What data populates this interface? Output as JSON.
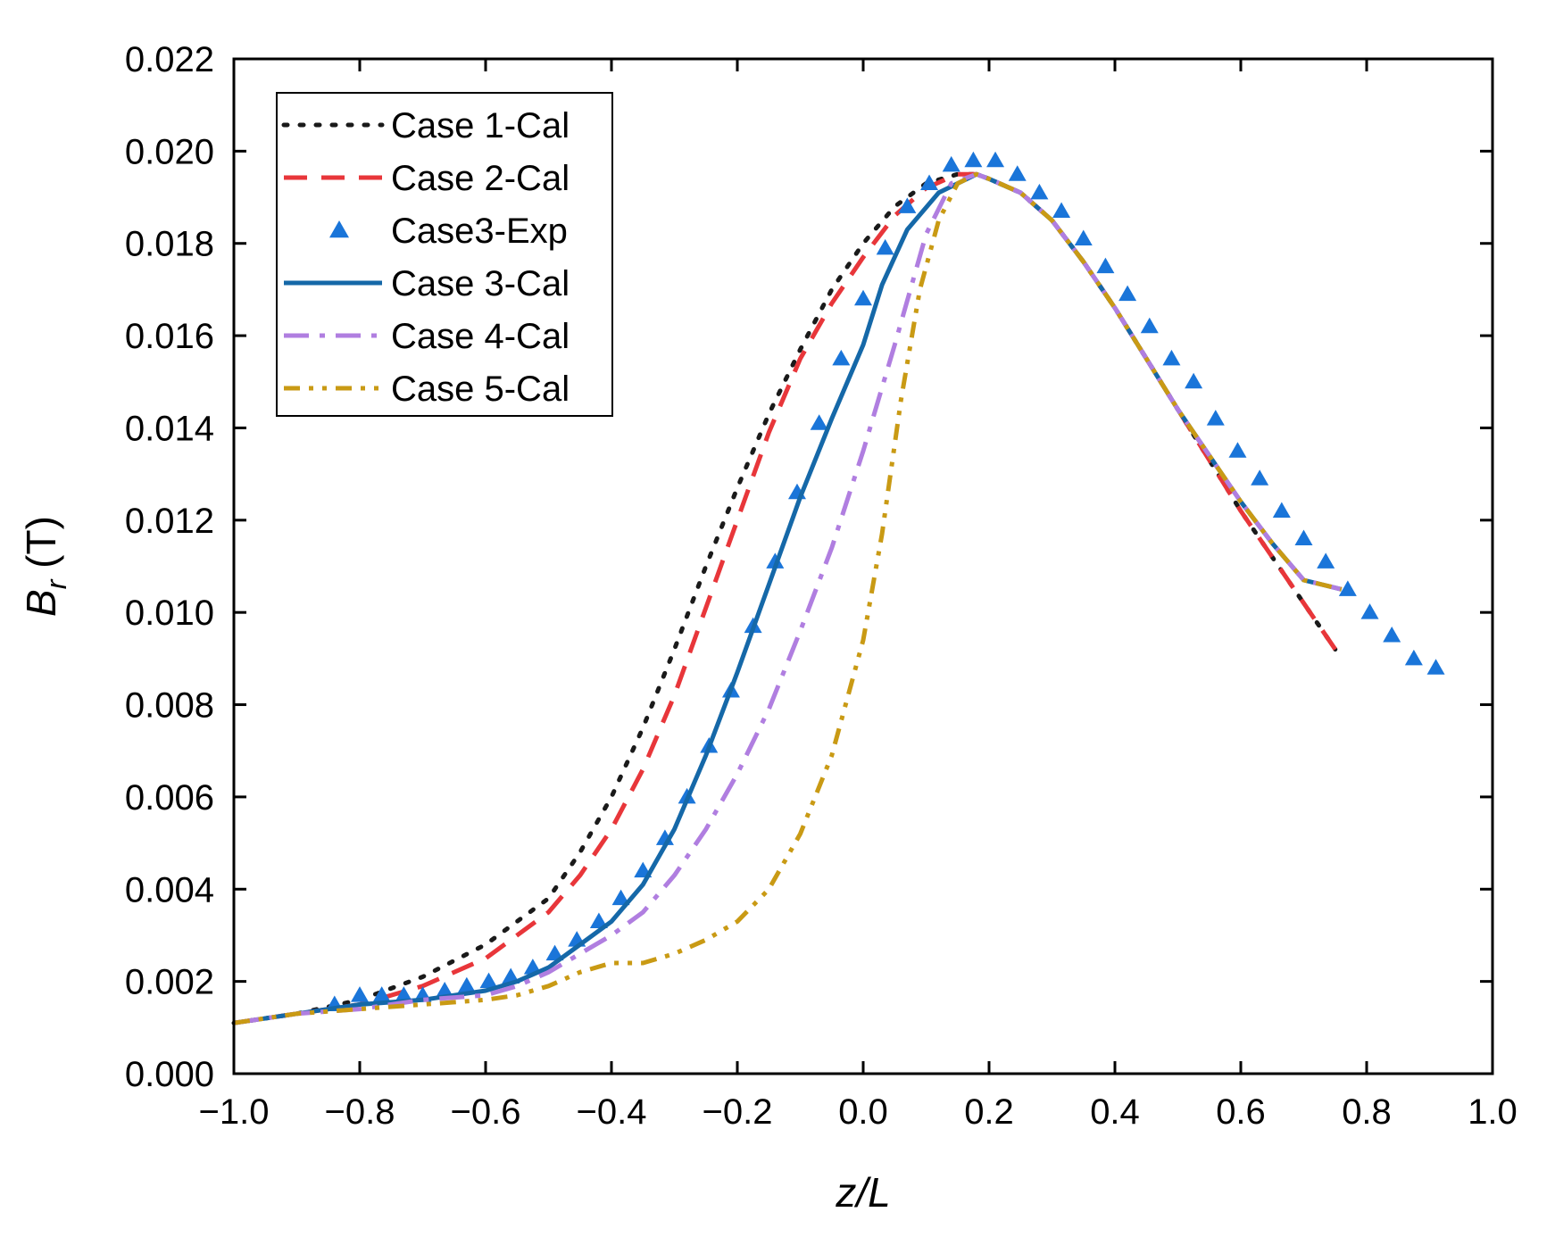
{
  "chart_data": {
    "type": "line",
    "title": "",
    "xlabel": "z/L",
    "ylabel_main": "B",
    "ylabel_sub": "r",
    "ylabel_unit": " (T)",
    "xlim": [
      -1.0,
      1.0
    ],
    "ylim": [
      0.0,
      0.022
    ],
    "xticks": [
      -1.0,
      -0.8,
      -0.6,
      -0.4,
      -0.2,
      0.0,
      0.2,
      0.4,
      0.6,
      0.8,
      1.0
    ],
    "xtick_labels": [
      "−1.0",
      "−0.8",
      "−0.6",
      "−0.4",
      "−0.2",
      "0.0",
      "0.2",
      "0.4",
      "0.6",
      "0.8",
      "1.0"
    ],
    "yticks": [
      0.0,
      0.002,
      0.004,
      0.006,
      0.008,
      0.01,
      0.012,
      0.014,
      0.016,
      0.018,
      0.02,
      0.022
    ],
    "ytick_labels": [
      "0.000",
      "0.002",
      "0.004",
      "0.006",
      "0.008",
      "0.010",
      "0.012",
      "0.014",
      "0.016",
      "0.018",
      "0.020",
      "0.022"
    ],
    "grid": false,
    "legend_position": "top-left",
    "series": [
      {
        "name": "Case 1-Cal",
        "style": "dotted",
        "color": "#1a1a1a",
        "x": [
          -1.0,
          -0.9,
          -0.8,
          -0.7,
          -0.6,
          -0.5,
          -0.45,
          -0.4,
          -0.35,
          -0.3,
          -0.25,
          -0.2,
          -0.15,
          -0.1,
          -0.05,
          0.0,
          0.05,
          0.1,
          0.15,
          0.18,
          0.2,
          0.25,
          0.3,
          0.35,
          0.4,
          0.45,
          0.5,
          0.55,
          0.6,
          0.65,
          0.7,
          0.75
        ],
        "y": [
          0.0011,
          0.0013,
          0.0016,
          0.0021,
          0.0028,
          0.0038,
          0.0048,
          0.006,
          0.0075,
          0.0092,
          0.011,
          0.0127,
          0.0143,
          0.0157,
          0.017,
          0.018,
          0.0188,
          0.0193,
          0.0195,
          0.0195,
          0.0194,
          0.0191,
          0.0185,
          0.0176,
          0.0166,
          0.0155,
          0.0144,
          0.0133,
          0.0122,
          0.0112,
          0.0102,
          0.0092
        ]
      },
      {
        "name": "Case 2-Cal",
        "style": "dashed",
        "color": "#e8363a",
        "x": [
          -1.0,
          -0.9,
          -0.8,
          -0.7,
          -0.6,
          -0.5,
          -0.45,
          -0.4,
          -0.35,
          -0.3,
          -0.25,
          -0.2,
          -0.15,
          -0.1,
          -0.05,
          0.0,
          0.05,
          0.1,
          0.15,
          0.18,
          0.2,
          0.25,
          0.3,
          0.35,
          0.4,
          0.45,
          0.5,
          0.55,
          0.6,
          0.65,
          0.7,
          0.75
        ],
        "y": [
          0.0011,
          0.0013,
          0.0015,
          0.0019,
          0.0025,
          0.0035,
          0.0043,
          0.0053,
          0.0066,
          0.0082,
          0.0101,
          0.012,
          0.0139,
          0.0155,
          0.0167,
          0.0177,
          0.0186,
          0.0192,
          0.0195,
          0.0195,
          0.0194,
          0.0191,
          0.0185,
          0.0176,
          0.0166,
          0.0155,
          0.0144,
          0.0133,
          0.0122,
          0.0112,
          0.0102,
          0.0092
        ]
      },
      {
        "name": "Case3-Exp",
        "style": "markers",
        "marker": "triangle",
        "color": "#1a75d9",
        "x": [
          -0.84,
          -0.8,
          -0.765,
          -0.73,
          -0.7,
          -0.665,
          -0.63,
          -0.595,
          -0.56,
          -0.525,
          -0.49,
          -0.455,
          -0.42,
          -0.385,
          -0.35,
          -0.315,
          -0.28,
          -0.245,
          -0.21,
          -0.175,
          -0.14,
          -0.105,
          -0.07,
          -0.035,
          0.0,
          0.035,
          0.07,
          0.105,
          0.14,
          0.175,
          0.21,
          0.245,
          0.28,
          0.315,
          0.35,
          0.385,
          0.42,
          0.455,
          0.49,
          0.525,
          0.56,
          0.595,
          0.63,
          0.665,
          0.7,
          0.735,
          0.77,
          0.805,
          0.84,
          0.875,
          0.91
        ],
        "y": [
          0.0015,
          0.0017,
          0.0017,
          0.0017,
          0.0017,
          0.0018,
          0.0019,
          0.002,
          0.0021,
          0.0023,
          0.0026,
          0.0029,
          0.0033,
          0.0038,
          0.0044,
          0.0051,
          0.006,
          0.0071,
          0.0083,
          0.0097,
          0.0111,
          0.0126,
          0.0141,
          0.0155,
          0.0168,
          0.0179,
          0.0188,
          0.0193,
          0.0197,
          0.0198,
          0.0198,
          0.0195,
          0.0191,
          0.0187,
          0.0181,
          0.0175,
          0.0169,
          0.0162,
          0.0155,
          0.015,
          0.0142,
          0.0135,
          0.0129,
          0.0122,
          0.0116,
          0.0111,
          0.0105,
          0.01,
          0.0095,
          0.009,
          0.0088
        ]
      },
      {
        "name": "Case 3-Cal",
        "style": "solid",
        "color": "#1568a8",
        "x": [
          -1.0,
          -0.9,
          -0.8,
          -0.7,
          -0.6,
          -0.55,
          -0.5,
          -0.45,
          -0.4,
          -0.35,
          -0.3,
          -0.25,
          -0.2,
          -0.15,
          -0.1,
          -0.05,
          0.0,
          0.03,
          0.07,
          0.12,
          0.18,
          0.2,
          0.25,
          0.3,
          0.35,
          0.4,
          0.45,
          0.5,
          0.55,
          0.6,
          0.65,
          0.7,
          0.76
        ],
        "y": [
          0.0011,
          0.0013,
          0.0015,
          0.0016,
          0.0018,
          0.002,
          0.0023,
          0.0028,
          0.0033,
          0.0041,
          0.0053,
          0.0069,
          0.0087,
          0.0106,
          0.0125,
          0.0142,
          0.0158,
          0.0171,
          0.0183,
          0.0191,
          0.0195,
          0.0194,
          0.0191,
          0.0185,
          0.0176,
          0.0166,
          0.0155,
          0.0144,
          0.0134,
          0.0124,
          0.0115,
          0.0107,
          0.0105
        ]
      },
      {
        "name": "Case 4-Cal",
        "style": "dashdot",
        "color": "#b07ee0",
        "x": [
          -1.0,
          -0.9,
          -0.8,
          -0.7,
          -0.6,
          -0.55,
          -0.5,
          -0.45,
          -0.4,
          -0.35,
          -0.3,
          -0.25,
          -0.2,
          -0.15,
          -0.1,
          -0.05,
          0.0,
          0.05,
          0.1,
          0.14,
          0.18,
          0.2,
          0.25,
          0.3,
          0.35,
          0.4,
          0.45,
          0.5,
          0.55,
          0.6,
          0.65,
          0.7,
          0.76
        ],
        "y": [
          0.0011,
          0.0013,
          0.0014,
          0.0016,
          0.0017,
          0.0019,
          0.0022,
          0.0026,
          0.003,
          0.0035,
          0.0043,
          0.0053,
          0.0065,
          0.0079,
          0.0096,
          0.0114,
          0.0135,
          0.0158,
          0.0182,
          0.0193,
          0.0195,
          0.0194,
          0.0191,
          0.0185,
          0.0176,
          0.0166,
          0.0155,
          0.0144,
          0.0134,
          0.0124,
          0.0115,
          0.0107,
          0.0105
        ]
      },
      {
        "name": "Case 5-Cal",
        "style": "dashdotdot",
        "color": "#c99a14",
        "x": [
          -1.0,
          -0.9,
          -0.8,
          -0.7,
          -0.6,
          -0.55,
          -0.5,
          -0.45,
          -0.4,
          -0.35,
          -0.3,
          -0.25,
          -0.2,
          -0.15,
          -0.1,
          -0.05,
          0.0,
          0.03,
          0.06,
          0.09,
          0.12,
          0.15,
          0.18,
          0.2,
          0.25,
          0.3,
          0.35,
          0.4,
          0.45,
          0.5,
          0.55,
          0.6,
          0.65,
          0.7,
          0.76
        ],
        "y": [
          0.0011,
          0.0013,
          0.0014,
          0.0015,
          0.0016,
          0.0017,
          0.0019,
          0.0022,
          0.0024,
          0.0024,
          0.0026,
          0.0029,
          0.0033,
          0.004,
          0.0052,
          0.0069,
          0.0094,
          0.0117,
          0.0146,
          0.017,
          0.0185,
          0.0193,
          0.0195,
          0.0194,
          0.0191,
          0.0185,
          0.0176,
          0.0166,
          0.0155,
          0.0144,
          0.0134,
          0.0124,
          0.0115,
          0.0107,
          0.0105
        ]
      }
    ]
  }
}
